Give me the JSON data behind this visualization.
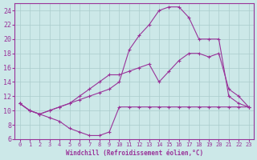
{
  "xlabel": "Windchill (Refroidissement éolien,°C)",
  "bg_color": "#cce8e8",
  "line_color": "#993399",
  "grid_color": "#aacccc",
  "xlim": [
    -0.5,
    23.5
  ],
  "ylim": [
    6,
    25
  ],
  "xticks": [
    0,
    1,
    2,
    3,
    4,
    5,
    6,
    7,
    8,
    9,
    10,
    11,
    12,
    13,
    14,
    15,
    16,
    17,
    18,
    19,
    20,
    21,
    22,
    23
  ],
  "yticks": [
    6,
    8,
    10,
    12,
    14,
    16,
    18,
    20,
    22,
    24
  ],
  "line1_x": [
    0,
    1,
    2,
    3,
    4,
    5,
    6,
    7,
    8,
    9,
    10,
    11,
    12,
    13,
    14,
    15,
    16,
    17,
    18,
    19,
    20,
    21,
    22,
    23
  ],
  "line1_y": [
    11,
    10,
    9.5,
    9,
    8.5,
    7.5,
    7,
    6.5,
    6.5,
    7,
    10.5,
    10.5,
    10.5,
    10.5,
    10.5,
    10.5,
    10.5,
    10.5,
    10.5,
    10.5,
    10.5,
    10.5,
    10.5,
    10.5
  ],
  "line2_x": [
    0,
    1,
    2,
    3,
    4,
    5,
    6,
    7,
    8,
    9,
    10,
    11,
    12,
    13,
    14,
    15,
    16,
    17,
    18,
    19,
    20,
    21,
    22,
    23
  ],
  "line2_y": [
    11,
    10,
    9.5,
    10,
    10.5,
    11,
    11.5,
    12,
    12.5,
    13,
    14,
    18.5,
    20.5,
    22,
    24,
    24.5,
    24.5,
    23,
    20,
    20,
    20,
    12,
    11,
    10.5
  ],
  "line3_x": [
    0,
    1,
    2,
    3,
    4,
    5,
    6,
    7,
    8,
    9,
    10,
    11,
    12,
    13,
    14,
    15,
    16,
    17,
    18,
    19,
    20,
    21,
    22,
    23
  ],
  "line3_y": [
    11,
    10,
    9.5,
    10,
    10.5,
    11,
    12,
    13,
    14,
    15,
    15,
    15.5,
    16,
    16.5,
    14,
    15.5,
    17,
    18,
    18,
    17.5,
    18,
    13,
    12,
    10.5
  ]
}
